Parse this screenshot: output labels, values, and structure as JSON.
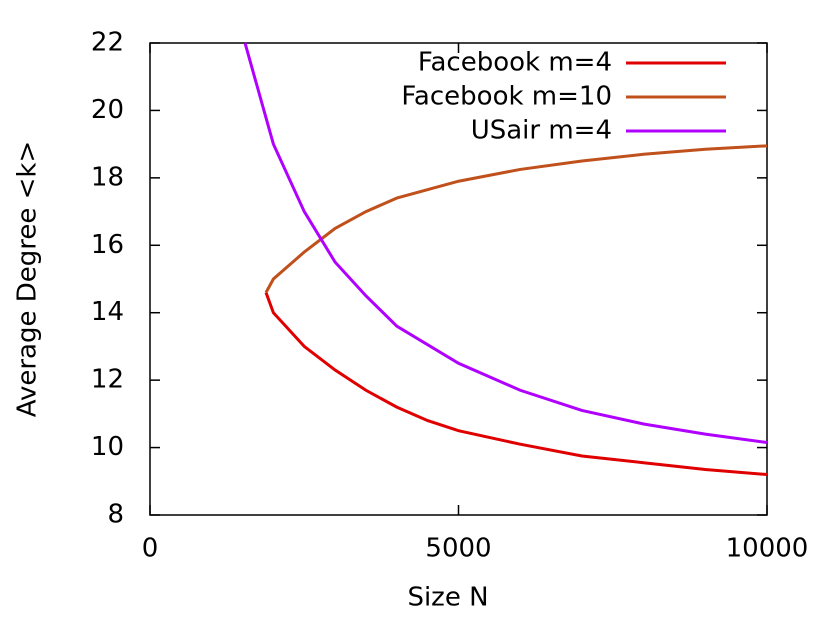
{
  "chart_data": {
    "type": "line",
    "xlabel": "Size N",
    "ylabel": "Average Degree <k>",
    "xlim": [
      0,
      10000
    ],
    "ylim": [
      8,
      22
    ],
    "xticks": [
      0,
      5000,
      10000
    ],
    "yticks": [
      8,
      10,
      12,
      14,
      16,
      18,
      20,
      22
    ],
    "legend": "upper right",
    "series": [
      {
        "name": "Facebook m=4",
        "color": "#e00000",
        "x": [
          1880,
          2000,
          2500,
          3000,
          3500,
          4000,
          4500,
          5000,
          6000,
          7000,
          8000,
          9000,
          10000
        ],
        "values": [
          14.6,
          14.0,
          13.0,
          12.3,
          11.7,
          11.2,
          10.8,
          10.5,
          10.1,
          9.75,
          9.55,
          9.35,
          9.2
        ]
      },
      {
        "name": "Facebook m=10",
        "color": "#c0501c",
        "x": [
          1880,
          2000,
          2500,
          3000,
          3500,
          4000,
          5000,
          6000,
          7000,
          8000,
          9000,
          10000
        ],
        "values": [
          14.6,
          15.0,
          15.8,
          16.5,
          17.0,
          17.4,
          17.9,
          18.25,
          18.5,
          18.7,
          18.85,
          18.95
        ]
      },
      {
        "name": "USair m=4",
        "color": "#b000ff",
        "x": [
          1540,
          2000,
          2500,
          3000,
          3500,
          4000,
          5000,
          6000,
          7000,
          8000,
          9000,
          10000
        ],
        "values": [
          22,
          19.0,
          17.0,
          15.5,
          14.5,
          13.6,
          12.5,
          11.7,
          11.1,
          10.7,
          10.4,
          10.15
        ]
      }
    ]
  }
}
